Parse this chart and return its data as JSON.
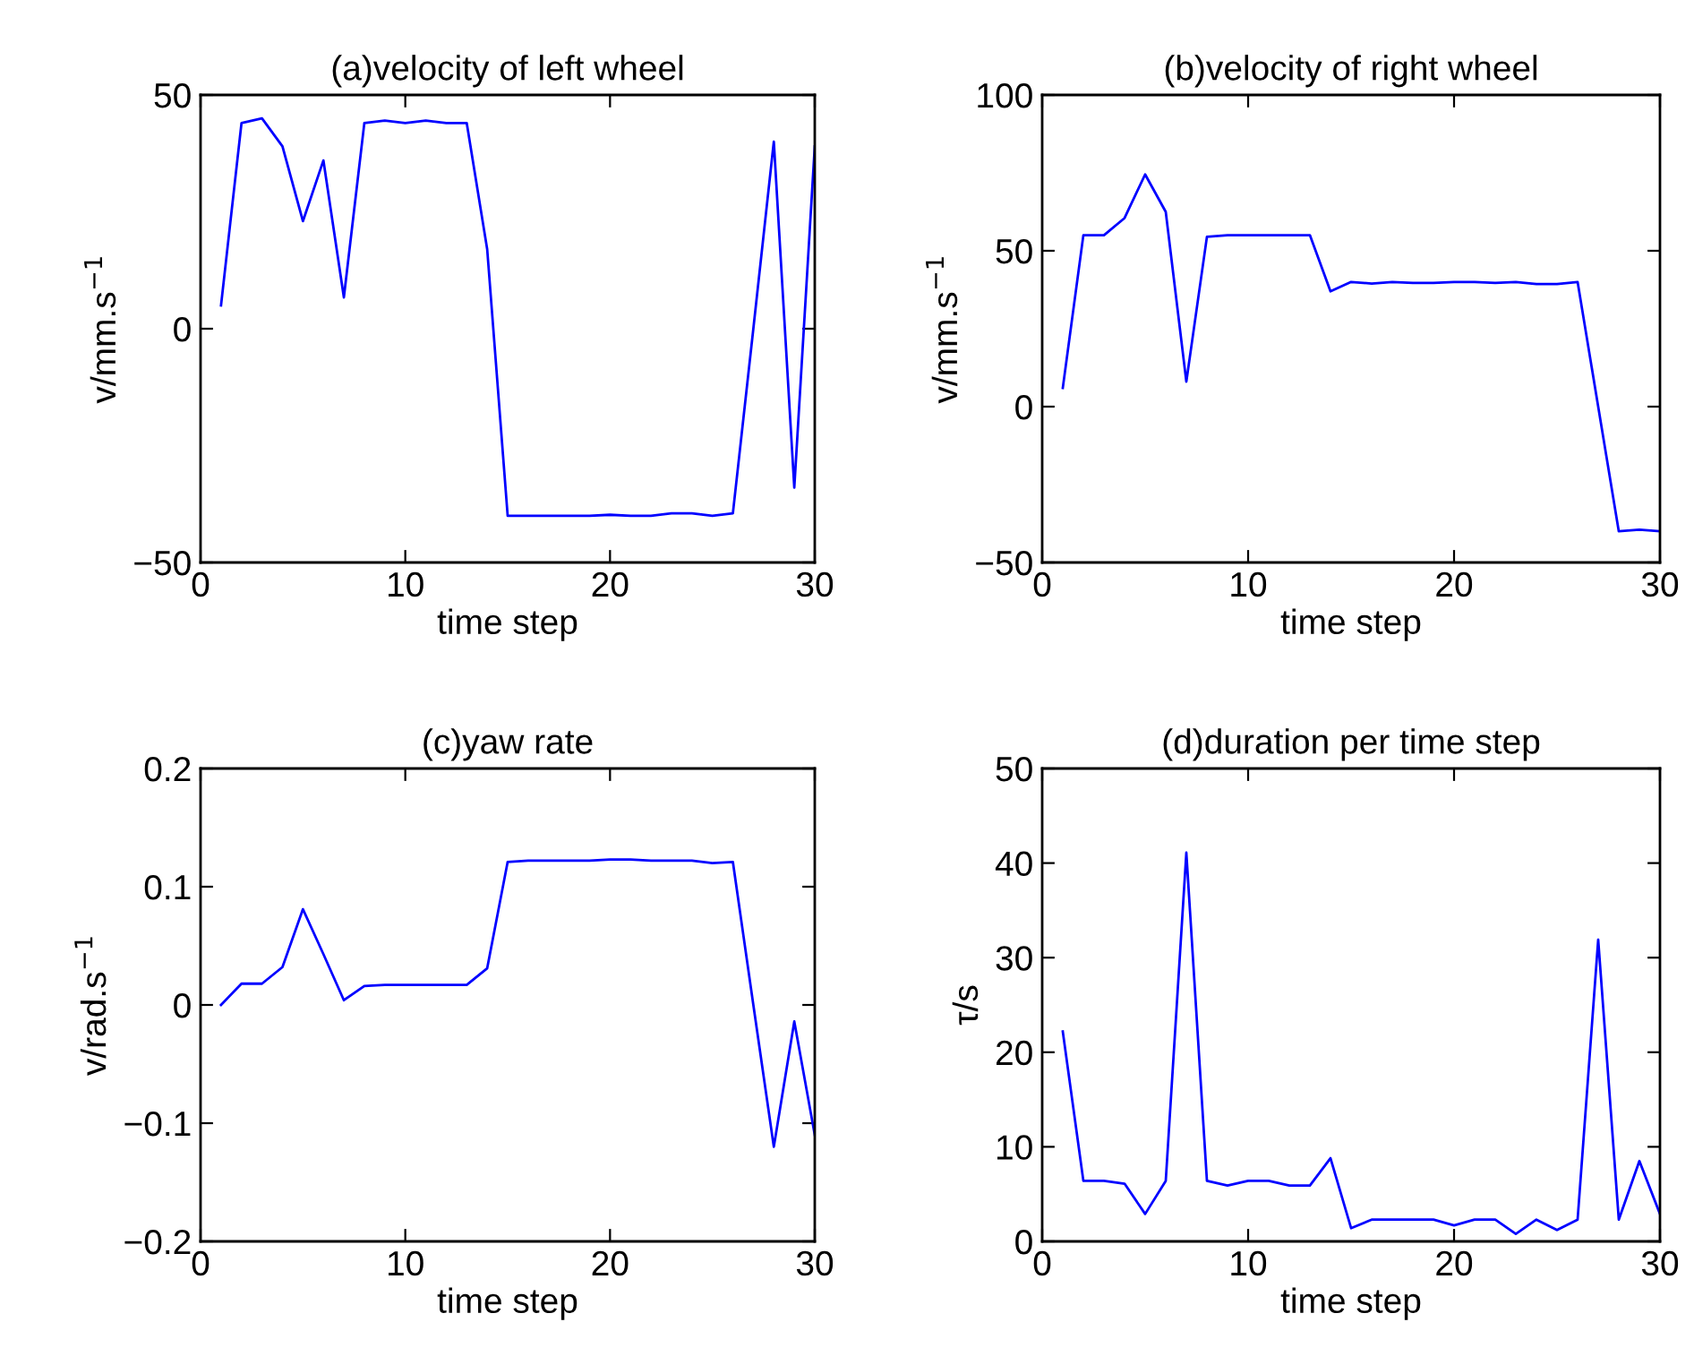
{
  "chart_data": [
    {
      "type": "line",
      "title": "(a)velocity of left wheel",
      "xlabel": "time step",
      "ylabel": "v/mm.s$^{−1}$",
      "x": [
        1,
        2,
        3,
        4,
        5,
        6,
        7,
        8,
        9,
        10,
        11,
        12,
        13,
        14,
        15,
        16,
        17,
        18,
        19,
        20,
        21,
        22,
        23,
        24,
        25,
        26,
        27,
        28,
        29,
        30
      ],
      "series": [
        {
          "color": "#0000ff",
          "values": [
            5,
            44,
            45,
            39,
            23,
            36,
            6.7,
            44,
            44.5,
            44,
            44.5,
            44,
            44,
            17,
            -40,
            -40,
            -40,
            -40,
            -40,
            -39.8,
            -40,
            -40,
            -39.5,
            -39.5,
            -40,
            -39.5,
            0,
            40,
            -34,
            39
          ]
        }
      ],
      "xlim": [
        0,
        30
      ],
      "xticks": [
        0,
        10,
        20,
        30
      ],
      "ylim": [
        -50,
        50
      ],
      "yticks": [
        {
          "value": -50,
          "label": "−50"
        },
        0,
        50
      ],
      "grid": false
    },
    {
      "type": "line",
      "title": "(b)velocity of right wheel",
      "xlabel": "time step",
      "ylabel": "v/mm.s$^{−1}$",
      "x": [
        1,
        2,
        3,
        4,
        5,
        6,
        7,
        8,
        9,
        10,
        11,
        12,
        13,
        14,
        15,
        16,
        17,
        18,
        19,
        20,
        21,
        22,
        23,
        24,
        25,
        26,
        27,
        28,
        29,
        30
      ],
      "series": [
        {
          "color": "#0000ff",
          "values": [
            6,
            55,
            55,
            60.5,
            74.5,
            62.5,
            8,
            54.5,
            55,
            55,
            55,
            55,
            55,
            37,
            40,
            39.5,
            40,
            39.7,
            39.7,
            40,
            40,
            39.7,
            40,
            39.3,
            39.3,
            40,
            0,
            -40,
            -39.5,
            -40
          ]
        }
      ],
      "xlim": [
        0,
        30
      ],
      "xticks": [
        0,
        10,
        20,
        30
      ],
      "ylim": [
        -50,
        100
      ],
      "yticks": [
        {
          "value": -50,
          "label": "−50"
        },
        0,
        50,
        100
      ],
      "grid": false
    },
    {
      "type": "line",
      "title": "(c)yaw rate",
      "xlabel": "time step",
      "ylabel": "v/rad.s$^{−1}$",
      "x": [
        1,
        2,
        3,
        4,
        5,
        6,
        7,
        8,
        9,
        10,
        11,
        12,
        13,
        14,
        15,
        16,
        17,
        18,
        19,
        20,
        21,
        22,
        23,
        24,
        25,
        26,
        27,
        28,
        29,
        30
      ],
      "series": [
        {
          "color": "#0000ff",
          "values": [
            0.0,
            0.018,
            0.018,
            0.032,
            0.081,
            0.043,
            0.004,
            0.016,
            0.017,
            0.017,
            0.017,
            0.017,
            0.017,
            0.031,
            0.121,
            0.122,
            0.122,
            0.122,
            0.122,
            0.123,
            0.123,
            0.122,
            0.122,
            0.122,
            0.12,
            0.121,
            0.0,
            -0.12,
            -0.014,
            -0.11
          ]
        }
      ],
      "xlim": [
        0,
        30
      ],
      "xticks": [
        0,
        10,
        20,
        30
      ],
      "ylim": [
        -0.2,
        0.2
      ],
      "yticks": [
        {
          "value": -0.2,
          "label": "−0.2"
        },
        {
          "value": -0.1,
          "label": "−0.1"
        },
        0,
        0.1,
        0.2
      ],
      "grid": false
    },
    {
      "type": "line",
      "title": "(d)duration per time step",
      "xlabel": "time step",
      "ylabel": "τ/s",
      "x": [
        1,
        2,
        3,
        4,
        5,
        6,
        7,
        8,
        9,
        10,
        11,
        12,
        13,
        14,
        15,
        16,
        17,
        18,
        19,
        20,
        21,
        22,
        23,
        24,
        25,
        26,
        27,
        28,
        29,
        30
      ],
      "series": [
        {
          "color": "#0000ff",
          "values": [
            22.2,
            6.4,
            6.4,
            6.1,
            2.9,
            6.4,
            41.1,
            6.4,
            5.9,
            6.4,
            6.4,
            5.9,
            5.9,
            8.8,
            1.4,
            2.3,
            2.3,
            2.3,
            2.3,
            1.7,
            2.3,
            2.3,
            0.8,
            2.3,
            1.2,
            2.3,
            31.9,
            2.3,
            8.5,
            2.9
          ]
        }
      ],
      "xlim": [
        0,
        30
      ],
      "xticks": [
        0,
        10,
        20,
        30
      ],
      "ylim": [
        0,
        50
      ],
      "yticks": [
        0,
        10,
        20,
        30,
        40,
        50
      ],
      "grid": false
    }
  ]
}
